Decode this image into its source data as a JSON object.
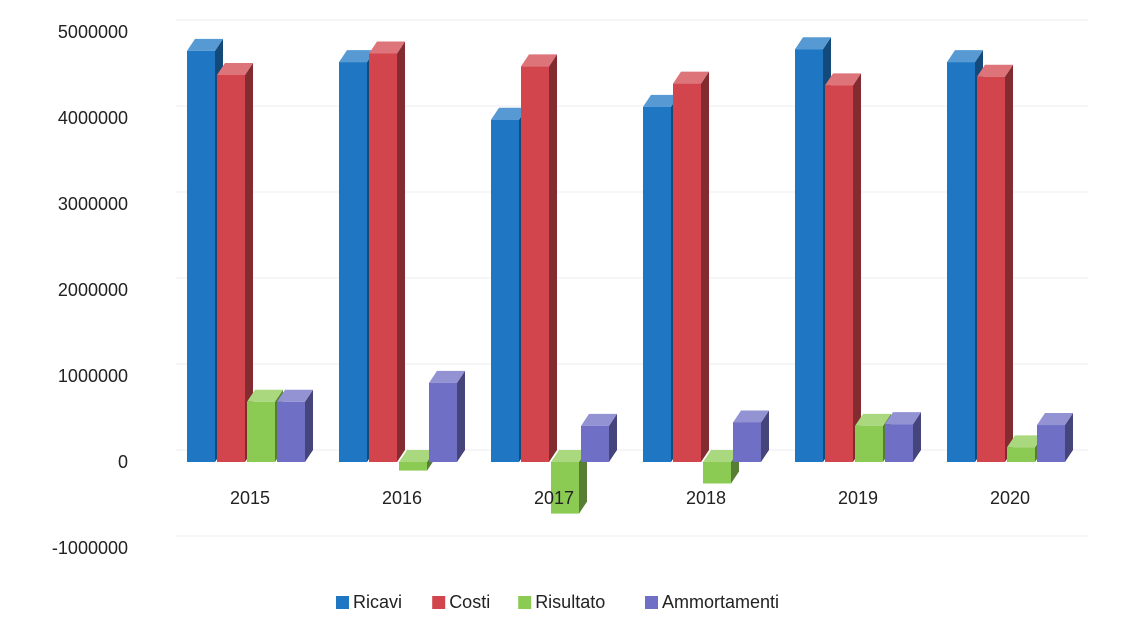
{
  "chart_data": {
    "type": "bar",
    "categories": [
      "2015",
      "2016",
      "2017",
      "2018",
      "2019",
      "2020"
    ],
    "series": [
      {
        "name": "Ricavi",
        "color": "#1F77C4",
        "values": [
          4780000,
          4650000,
          3980000,
          4130000,
          4800000,
          4650000
        ]
      },
      {
        "name": "Costi",
        "color": "#D2454D",
        "values": [
          4500000,
          4750000,
          4600000,
          4400000,
          4380000,
          4480000
        ]
      },
      {
        "name": "Risultato",
        "color": "#8CCB53",
        "values": [
          700000,
          -100000,
          -600000,
          -250000,
          420000,
          170000
        ]
      },
      {
        "name": "Ammortamenti",
        "color": "#6F6FC6",
        "values": [
          700000,
          920000,
          420000,
          460000,
          440000,
          430000
        ]
      }
    ],
    "yticks": [
      "5000000",
      "4000000",
      "3000000",
      "2000000",
      "1000000",
      "0",
      "-1000000"
    ],
    "ylim": [
      -1000000,
      5000000
    ],
    "grid": true,
    "legend_position": "bottom",
    "style": "3d-column"
  }
}
